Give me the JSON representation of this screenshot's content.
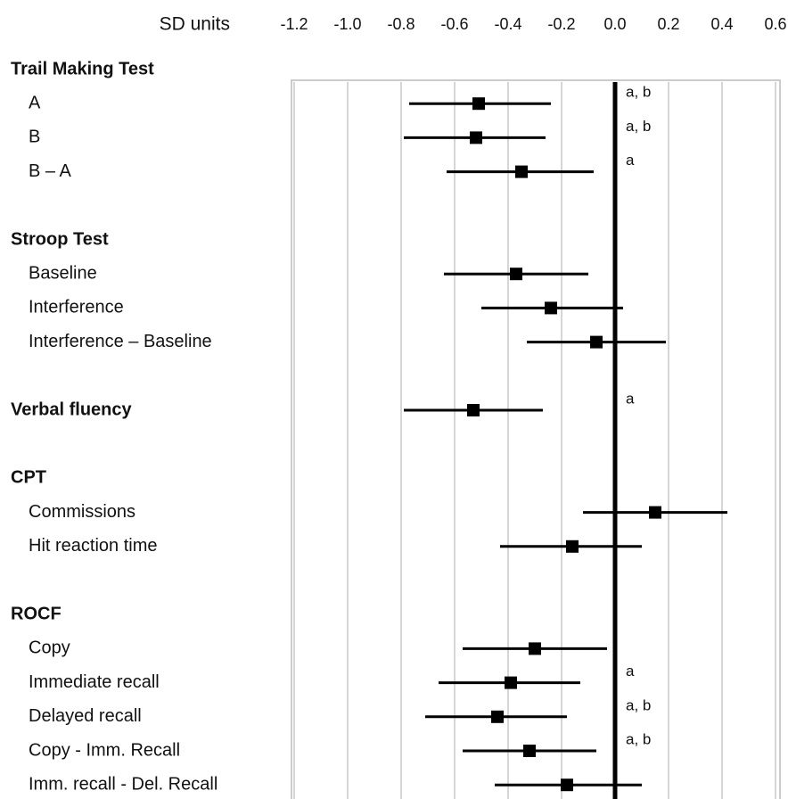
{
  "chart_data": {
    "type": "forest",
    "x_label": "SD units",
    "xlim": [
      -1.2,
      0.6
    ],
    "xticks": [
      -1.2,
      {
        "value": -1.0,
        "label": "-1.0"
      },
      -0.8,
      -0.6,
      -0.4,
      -0.2,
      {
        "value": 0.0,
        "label": "0.0"
      },
      0.2,
      0.4,
      0.6
    ],
    "grid": true,
    "color": "#000000",
    "groups": [
      {
        "name": "Trail Making Test",
        "items": [
          {
            "label": "A",
            "value": -0.51,
            "lower": -0.77,
            "upper": -0.24,
            "note": "a, b"
          },
          {
            "label": "B",
            "value": -0.52,
            "lower": -0.79,
            "upper": -0.26,
            "note": "a, b"
          },
          {
            "label": "B – A",
            "value": -0.35,
            "lower": -0.63,
            "upper": -0.08,
            "note": "a"
          }
        ]
      },
      {
        "name": "Stroop Test",
        "items": [
          {
            "label": "Baseline",
            "value": -0.37,
            "lower": -0.64,
            "upper": -0.1
          },
          {
            "label": "Interference",
            "value": -0.24,
            "lower": -0.5,
            "upper": 0.03
          },
          {
            "label": "Interference  – Baseline",
            "value": -0.07,
            "lower": -0.33,
            "upper": 0.19
          }
        ]
      },
      {
        "name": "Verbal fluency",
        "value": -0.53,
        "lower": -0.79,
        "upper": -0.27,
        "note": "a"
      },
      {
        "name": "CPT",
        "items": [
          {
            "label": "Commissions",
            "value": 0.15,
            "lower": -0.12,
            "upper": 0.42
          },
          {
            "label": "Hit reaction  time",
            "value": -0.16,
            "lower": -0.43,
            "upper": 0.1
          }
        ]
      },
      {
        "name": "ROCF",
        "items": [
          {
            "label": "Copy",
            "value": -0.3,
            "lower": -0.57,
            "upper": -0.03
          },
          {
            "label": "Immediate recall",
            "value": -0.39,
            "lower": -0.66,
            "upper": -0.13,
            "note": "a"
          },
          {
            "label": "Delayed recall",
            "value": -0.44,
            "lower": -0.71,
            "upper": -0.18,
            "note": "a, b"
          },
          {
            "label": "Copy - Imm. Recall",
            "value": -0.32,
            "lower": -0.57,
            "upper": -0.07,
            "note": "a, b"
          },
          {
            "label": "Imm. recall - Del. Recall",
            "value": -0.18,
            "lower": -0.45,
            "upper": 0.1
          }
        ]
      }
    ]
  }
}
